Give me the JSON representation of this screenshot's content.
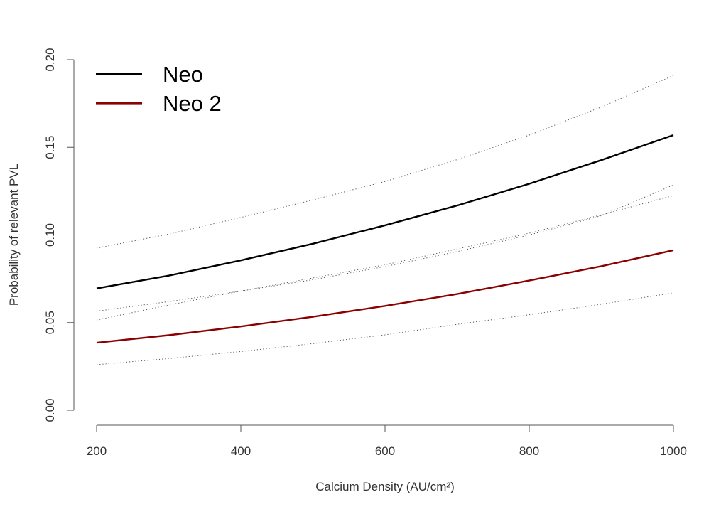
{
  "chart_data": {
    "type": "line",
    "xlabel": "Calcium Density (AU/cm²)",
    "ylabel": "Probability of relevant PVL",
    "xlim": [
      200,
      1000
    ],
    "ylim": [
      0,
      0.2
    ],
    "x_ticks": [
      "200",
      "400",
      "600",
      "800",
      "1000"
    ],
    "y_ticks": [
      "0.00",
      "0.05",
      "0.10",
      "0.15",
      "0.20"
    ],
    "x": [
      200,
      300,
      400,
      500,
      600,
      700,
      800,
      900,
      1000
    ],
    "series": [
      {
        "name": "Neo",
        "color": "#000000",
        "values": [
          0.0695,
          0.0768,
          0.0855,
          0.095,
          0.1055,
          0.1168,
          0.1292,
          0.1427,
          0.157
        ]
      },
      {
        "name": "Neo 2",
        "color": "#8b0000",
        "values": [
          0.0385,
          0.0428,
          0.0478,
          0.0533,
          0.0595,
          0.0663,
          0.074,
          0.0822,
          0.0913
        ]
      }
    ],
    "intervals": [
      {
        "series": "Neo",
        "style": "dotted",
        "upper": [
          0.0925,
          0.1005,
          0.11,
          0.12,
          0.1305,
          0.143,
          0.157,
          0.173,
          0.191
        ],
        "lower": [
          0.0515,
          0.06,
          0.068,
          0.0755,
          0.083,
          0.092,
          0.101,
          0.1115,
          0.1225
        ]
      },
      {
        "series": "Neo 2",
        "style": "dotted",
        "upper": [
          0.0565,
          0.062,
          0.068,
          0.0745,
          0.082,
          0.0905,
          0.1,
          0.111,
          0.1285
        ],
        "lower": [
          0.026,
          0.0295,
          0.0335,
          0.038,
          0.043,
          0.049,
          0.0545,
          0.0605,
          0.067
        ]
      }
    ],
    "legend": {
      "position": "top-left"
    },
    "grid": false
  }
}
